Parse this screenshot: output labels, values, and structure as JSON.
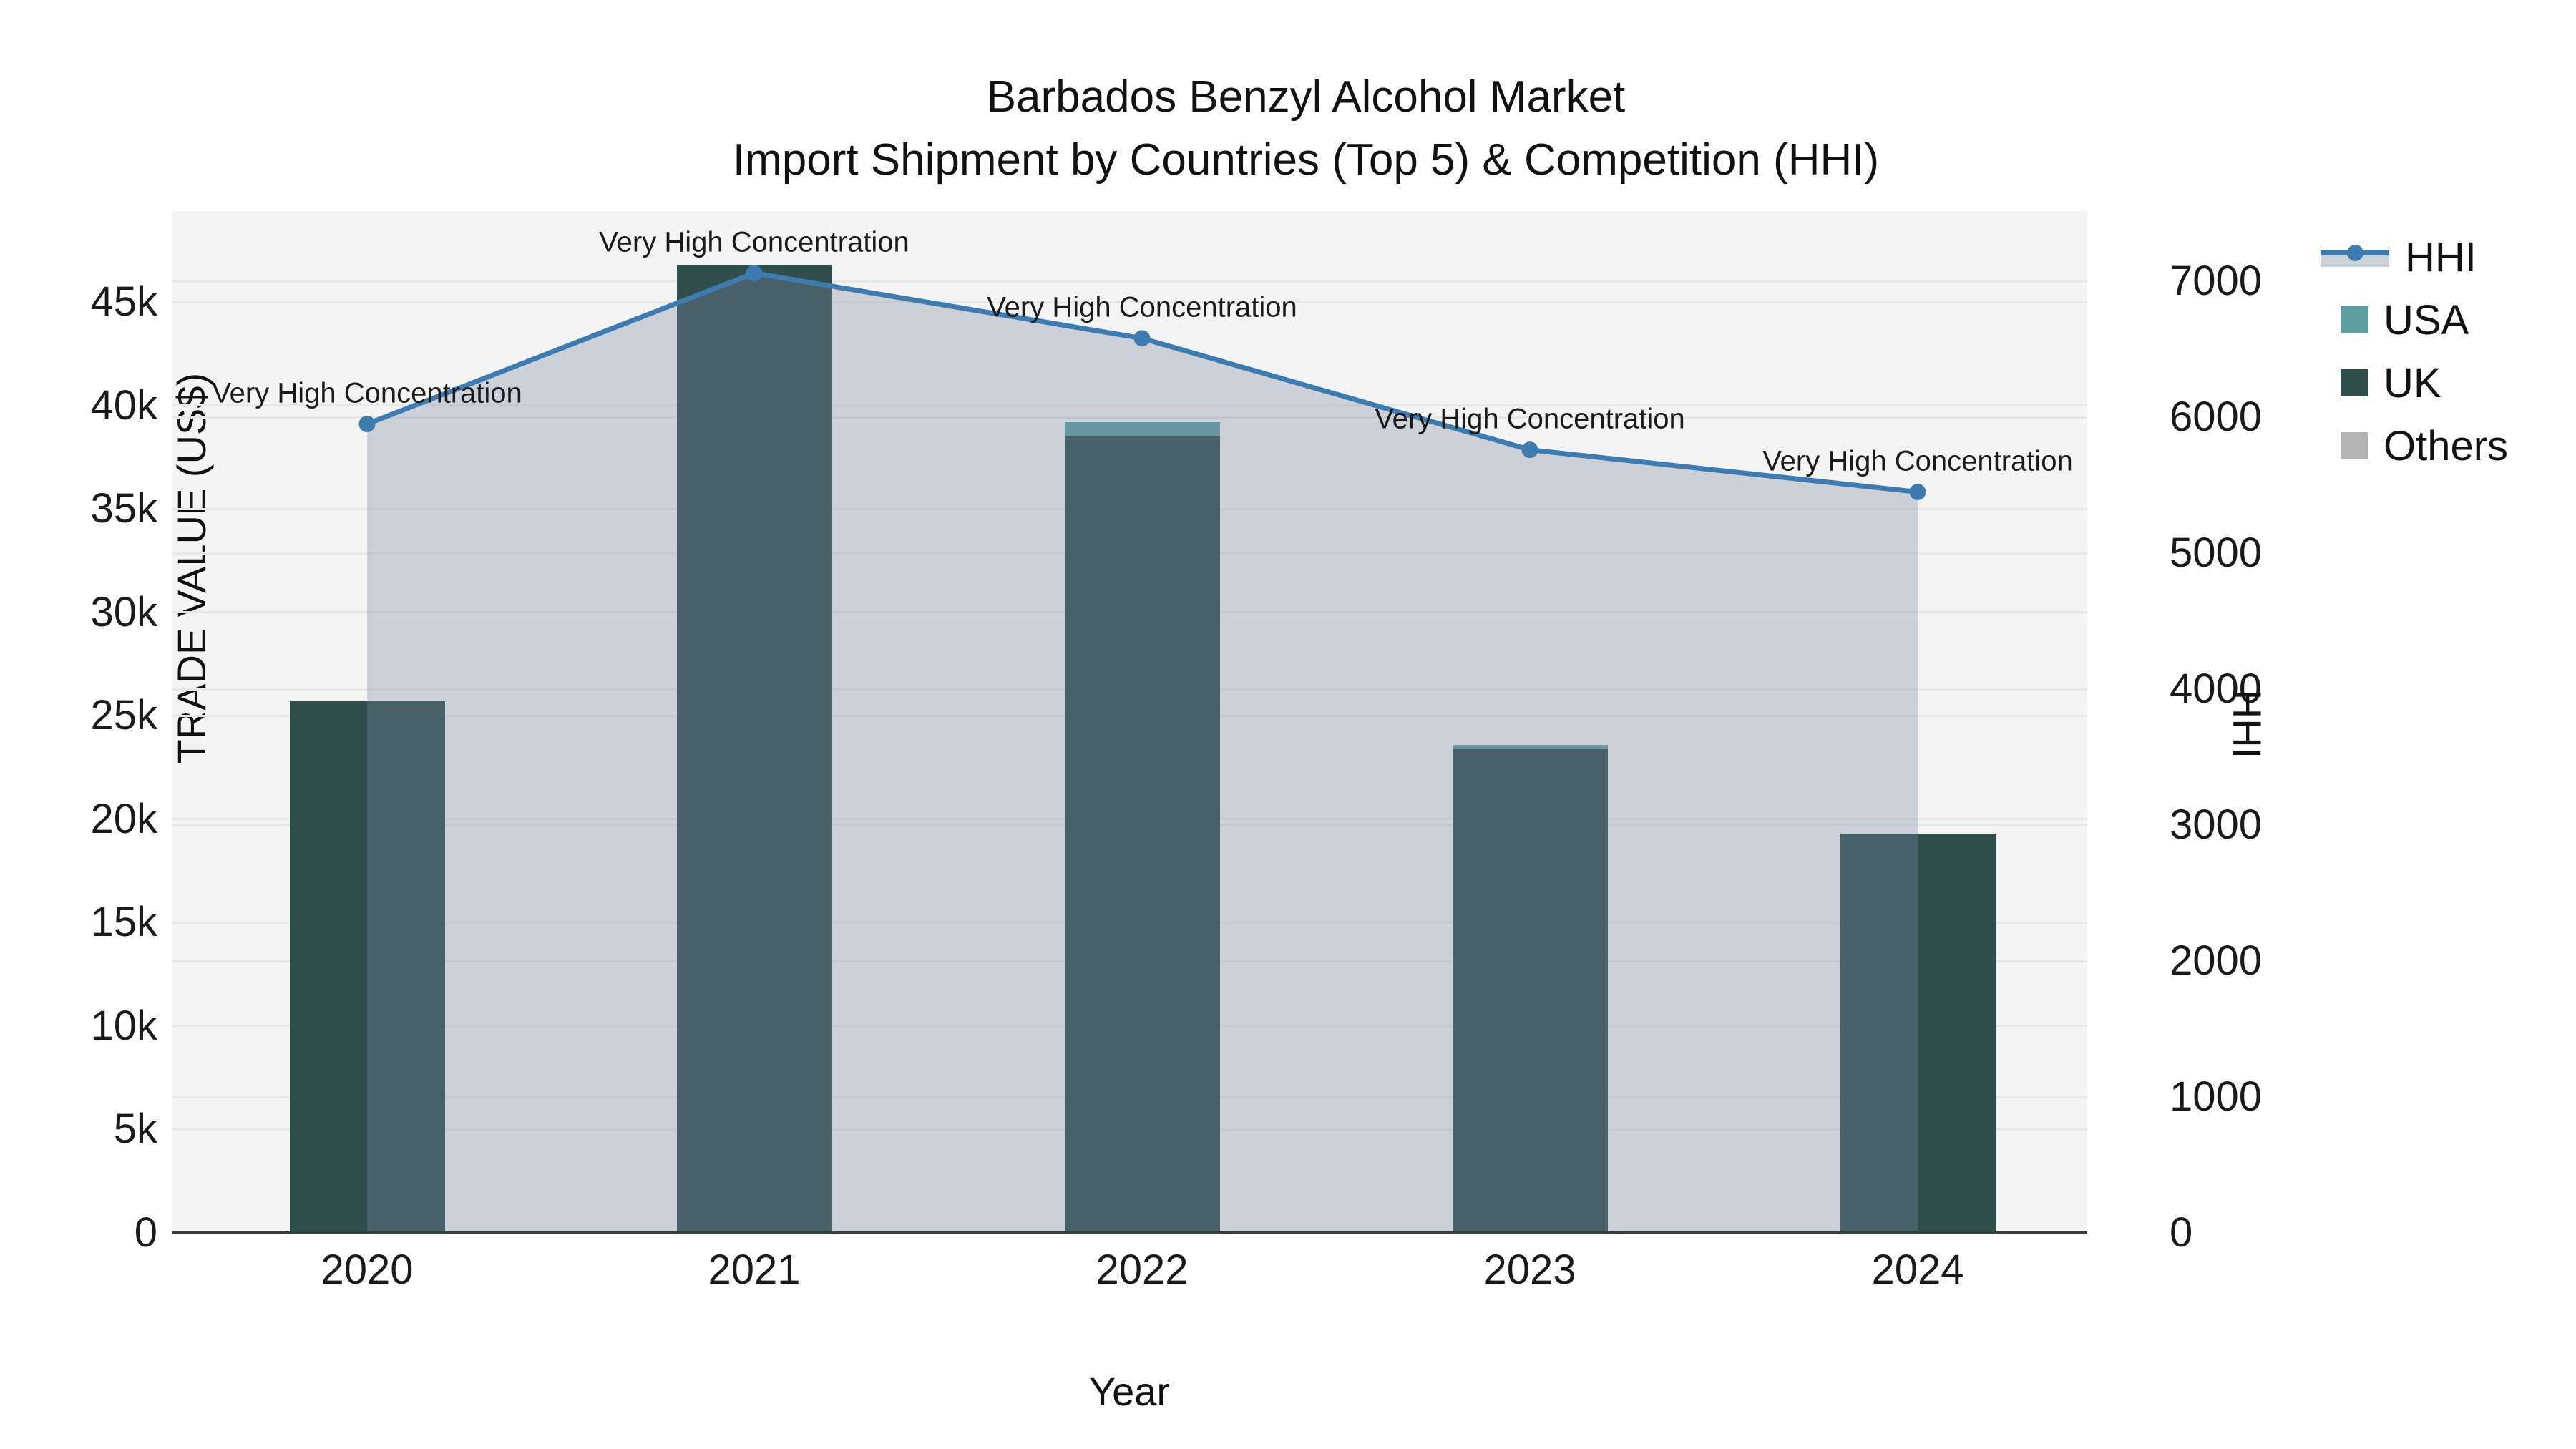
{
  "title": {
    "line1": "Barbados Benzyl Alcohol Market",
    "line2": "Import Shipment by Countries (Top 5) & Competition (HHI)"
  },
  "legend": {
    "items": [
      {
        "id": "hhi",
        "label": "HHI",
        "symbol": "line-marker-area"
      },
      {
        "id": "usa",
        "label": "USA",
        "symbol": "swatch"
      },
      {
        "id": "uk",
        "label": "UK",
        "symbol": "swatch"
      },
      {
        "id": "others",
        "label": "Others",
        "symbol": "swatch"
      }
    ]
  },
  "colors": {
    "hhi_line": "#3e7bb0",
    "hhi_area_fill": "rgba(125,138,165,0.33)",
    "hhi_legend_area": "#cdd2da",
    "usa": "#5f9ea0",
    "uk": "#2f4e4c",
    "others": "#b3b3b3",
    "plot_background": "#f3f4f3",
    "gridline": "#e6e8e7",
    "axis_line": "#3b3b3b"
  },
  "chart_data": {
    "type": "bar+line",
    "categories": [
      "2020",
      "2021",
      "2022",
      "2023",
      "2024"
    ],
    "series": [
      {
        "name": "UK",
        "axis": "left",
        "values": [
          25700,
          46800,
          38500,
          23400,
          19300
        ]
      },
      {
        "name": "USA",
        "axis": "left",
        "values": [
          0,
          0,
          700,
          200,
          0
        ]
      },
      {
        "name": "Others",
        "axis": "left",
        "values": [
          0,
          0,
          0,
          0,
          0
        ]
      }
    ],
    "line_series": {
      "name": "HHI",
      "axis": "right",
      "values": [
        5950,
        7060,
        6580,
        5760,
        5450
      ]
    },
    "annotations": [
      "Very High Concentration",
      "Very High Concentration",
      "Very High Concentration",
      "Very High Concentration",
      "Very High Concentration"
    ],
    "left_axis": {
      "label": "TRADE VALUE (US$)",
      "tick_values": [
        0,
        5000,
        10000,
        15000,
        20000,
        25000,
        30000,
        35000,
        40000,
        45000
      ],
      "tick_labels": [
        "0",
        "5k",
        "10k",
        "15k",
        "20k",
        "25k",
        "30k",
        "35k",
        "40k",
        "45k"
      ],
      "range": [
        0,
        49400
      ],
      "grid": true
    },
    "right_axis": {
      "label": "HHI",
      "tick_values": [
        0,
        1000,
        2000,
        3000,
        4000,
        5000,
        6000,
        7000
      ],
      "tick_labels": [
        "0",
        "1000",
        "2000",
        "3000",
        "4000",
        "5000",
        "6000",
        "7000"
      ],
      "range": [
        0,
        7516
      ],
      "grid": true
    },
    "x_axis": {
      "label": "Year"
    },
    "legend_position": "right"
  }
}
